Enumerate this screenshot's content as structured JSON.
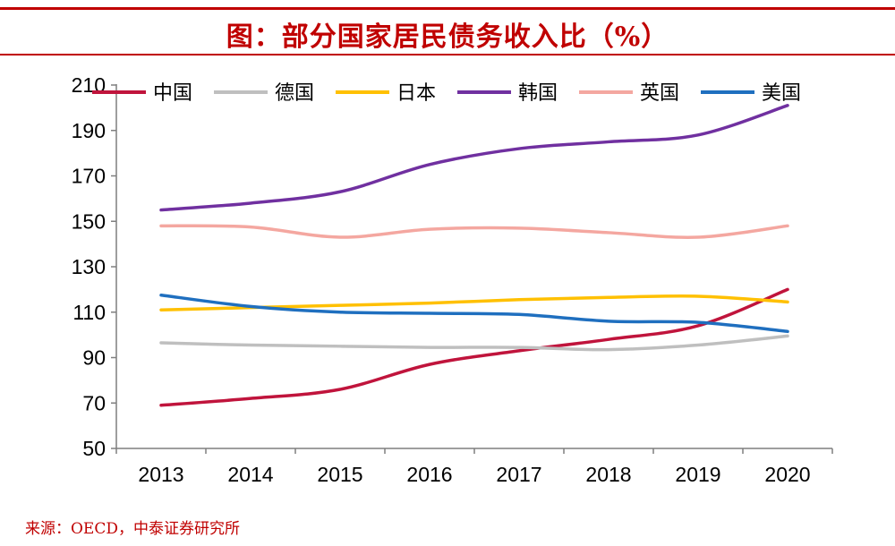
{
  "title": "图：部分国家居民债务收入比（%）",
  "source": "来源：OECD，中泰证券研究所",
  "chart_data": {
    "type": "line",
    "title": "图：部分国家居民债务收入比（%）",
    "xlabel": "",
    "ylabel": "",
    "categories": [
      "2013",
      "2014",
      "2015",
      "2016",
      "2017",
      "2018",
      "2019",
      "2020"
    ],
    "ylim": [
      50,
      210
    ],
    "yticks": [
      50,
      70,
      90,
      110,
      130,
      150,
      170,
      190,
      210
    ],
    "grid": false,
    "legend_position": "top",
    "series": [
      {
        "name": "中国",
        "color": "#c0143c",
        "values": [
          69,
          72,
          76,
          87,
          93,
          98,
          104,
          120
        ]
      },
      {
        "name": "德国",
        "color": "#bfbfbf",
        "values": [
          96.5,
          95.5,
          95,
          94.5,
          94.5,
          93.5,
          95.5,
          99.5
        ]
      },
      {
        "name": "日本",
        "color": "#ffc000",
        "values": [
          111,
          112,
          113,
          114,
          115.5,
          116.5,
          117,
          114.5
        ]
      },
      {
        "name": "韩国",
        "color": "#7030a0",
        "values": [
          155,
          158,
          163,
          175,
          182,
          185,
          188,
          201
        ]
      },
      {
        "name": "英国",
        "color": "#f4a7a0",
        "values": [
          148,
          147.5,
          143,
          146.5,
          147,
          145,
          143,
          148
        ]
      },
      {
        "name": "美国",
        "color": "#1f6fbf",
        "values": [
          117.5,
          112.5,
          110,
          109.5,
          109,
          106,
          105.5,
          101.5
        ]
      }
    ]
  }
}
